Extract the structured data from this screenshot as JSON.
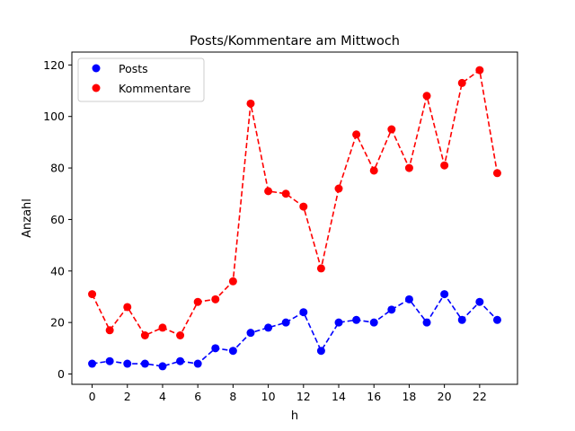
{
  "chart_data": {
    "type": "line",
    "title": "Posts/Kommentare am Mittwoch",
    "xlabel": "h",
    "ylabel": "Anzahl",
    "x": [
      0,
      1,
      2,
      3,
      4,
      5,
      6,
      7,
      8,
      9,
      10,
      11,
      12,
      13,
      14,
      15,
      16,
      17,
      18,
      19,
      20,
      21,
      22,
      23
    ],
    "xlim": [
      -1.15,
      24.15
    ],
    "ylim": [
      -4,
      125
    ],
    "xticks": [
      0,
      2,
      4,
      6,
      8,
      10,
      12,
      14,
      16,
      18,
      20,
      22
    ],
    "yticks": [
      0,
      20,
      40,
      60,
      80,
      100,
      120
    ],
    "grid": false,
    "legend_position": "top-left",
    "line_style": "dashed",
    "marker": "circle",
    "series": [
      {
        "name": "Posts",
        "color": "#0000ff",
        "values": [
          4,
          5,
          4,
          4,
          3,
          5,
          4,
          10,
          9,
          16,
          18,
          20,
          24,
          9,
          20,
          21,
          20,
          25,
          29,
          20,
          31,
          21,
          28,
          21
        ]
      },
      {
        "name": "Kommentare",
        "color": "#ff0000",
        "values": [
          31,
          17,
          26,
          15,
          18,
          15,
          28,
          29,
          36,
          105,
          71,
          70,
          65,
          41,
          72,
          93,
          79,
          95,
          80,
          108,
          81,
          113,
          118,
          78
        ]
      }
    ]
  }
}
